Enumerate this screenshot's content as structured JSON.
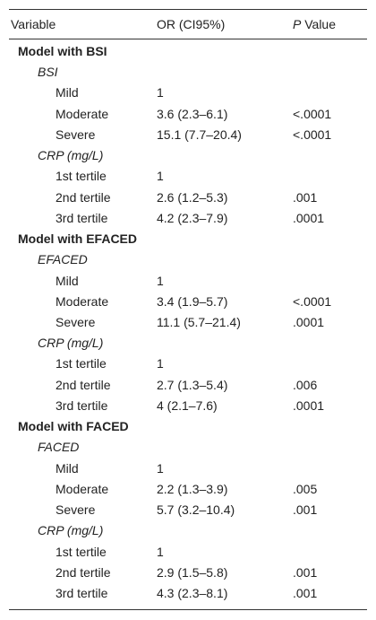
{
  "table": {
    "header": {
      "cells": [
        "Variable",
        "OR (CI95%)"
      ],
      "p_label": [
        "P",
        " Value"
      ]
    },
    "groups": [
      {
        "model": "Model with BSI",
        "sections": [
          {
            "label": "BSI",
            "rows": [
              [
                "Mild",
                "1"
              ],
              [
                "Moderate",
                "3.6 (2.3–6.1)",
                "<.0001"
              ],
              [
                "Severe",
                "15.1 (7.7–20.4)",
                "<.0001"
              ]
            ]
          },
          {
            "label": "CRP (mg/L)",
            "rows": [
              [
                "1st tertile",
                "1"
              ],
              [
                "2nd tertile",
                "2.6 (1.2–5.3)",
                ".001"
              ],
              [
                "3rd tertile",
                "4.2 (2.3–7.9)",
                ".0001"
              ]
            ]
          }
        ]
      },
      {
        "model": "Model with EFACED",
        "sections": [
          {
            "label": "EFACED",
            "rows": [
              [
                "Mild",
                "1"
              ],
              [
                "Moderate",
                "3.4 (1.9–5.7)",
                "<.0001"
              ],
              [
                "Severe",
                "11.1 (5.7–21.4)",
                ".0001"
              ]
            ]
          },
          {
            "label": "CRP (mg/L)",
            "rows": [
              [
                "1st tertile",
                "1"
              ],
              [
                "2nd tertile",
                "2.7 (1.3–5.4)",
                ".006"
              ],
              [
                "3rd tertile",
                "4 (2.1–7.6)",
                ".0001"
              ]
            ]
          }
        ]
      },
      {
        "model": "Model with FACED",
        "sections": [
          {
            "label": "FACED",
            "rows": [
              [
                "Mild",
                "1"
              ],
              [
                "Moderate",
                "2.2 (1.3–3.9)",
                ".005"
              ],
              [
                "Severe",
                "5.7 (3.2–10.4)",
                ".001"
              ]
            ]
          },
          {
            "label": "CRP (mg/L)",
            "rows": [
              [
                "1st tertile",
                "1"
              ],
              [
                "2nd tertile",
                "2.9 (1.5–5.8)",
                ".001"
              ],
              [
                "3rd tertile",
                "4.3 (2.3–8.1)",
                ".001"
              ]
            ]
          }
        ]
      }
    ]
  }
}
